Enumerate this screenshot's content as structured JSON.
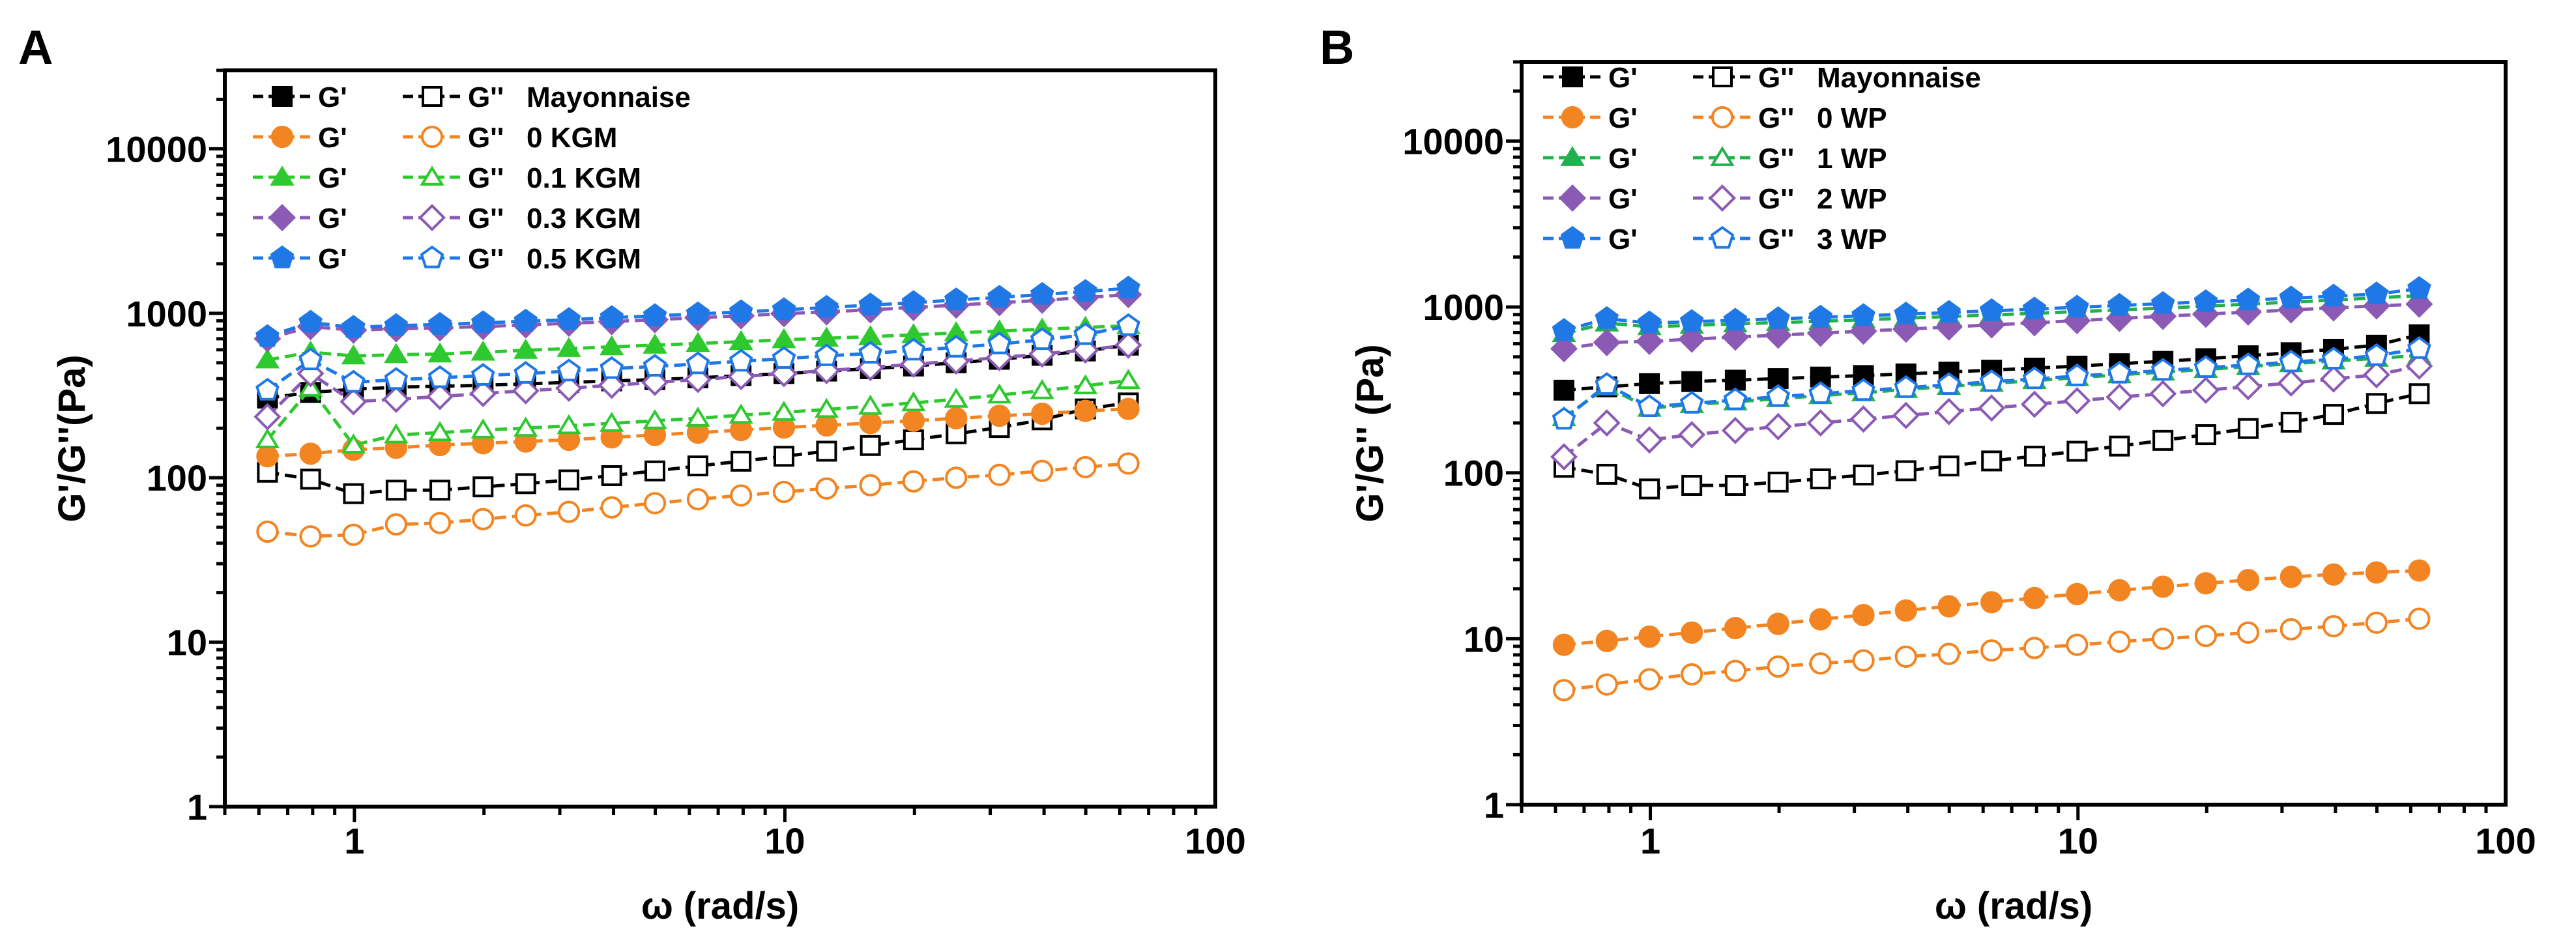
{
  "chart_data": [
    {
      "panel": "A",
      "type": "line",
      "scale": "log-log",
      "xlabel": "ω (rad/s)",
      "ylabel": "G'/G''(Pa)",
      "xlim": [
        0.5,
        100
      ],
      "ylim": [
        1,
        30000
      ],
      "xticks": [
        1,
        10,
        100
      ],
      "xtick_labels": [
        "1",
        "10",
        "100"
      ],
      "yticks": [
        1,
        10,
        100,
        1000,
        10000
      ],
      "ytick_labels": [
        "1",
        "10",
        "100",
        "1000",
        "10000"
      ],
      "legend_position": "top-left",
      "x": [
        0.628,
        0.791,
        0.995,
        1.25,
        1.58,
        1.99,
        2.5,
        3.15,
        3.96,
        4.99,
        6.28,
        7.91,
        9.95,
        12.5,
        15.8,
        19.9,
        25,
        31.5,
        39.6,
        49.9,
        62.8
      ],
      "series": [
        {
          "group": "Mayonnaise",
          "modulus": "G'",
          "legend_gp": "G'",
          "legend_gpp": "G''",
          "name": "Mayonnaise",
          "marker": "square",
          "color": "#000000",
          "filled": true,
          "values": [
            305,
            330,
            345,
            355,
            360,
            365,
            372,
            380,
            388,
            395,
            405,
            418,
            430,
            445,
            460,
            478,
            500,
            525,
            555,
            590,
            640
          ]
        },
        {
          "group": "Mayonnaise",
          "modulus": "G''",
          "marker": "square",
          "color": "#000000",
          "filled": false,
          "values": [
            108,
            98,
            80,
            84,
            84,
            88,
            92,
            97,
            103,
            110,
            118,
            126,
            135,
            145,
            157,
            170,
            185,
            202,
            225,
            262,
            285
          ]
        },
        {
          "group": "0 KGM",
          "modulus": "G'",
          "legend_gp": "G'",
          "legend_gpp": "G''",
          "name": "0 KGM",
          "marker": "circle",
          "color": "#f28522",
          "filled": true,
          "values": [
            135,
            140,
            148,
            152,
            158,
            162,
            166,
            170,
            176,
            182,
            188,
            195,
            202,
            208,
            215,
            222,
            230,
            238,
            245,
            255,
            262
          ]
        },
        {
          "group": "0 KGM",
          "modulus": "G''",
          "marker": "circle",
          "color": "#f28522",
          "filled": false,
          "values": [
            47,
            44,
            45,
            52,
            53,
            56,
            59,
            62,
            66,
            70,
            74,
            78,
            82,
            86,
            90,
            95,
            100,
            104,
            110,
            116,
            122
          ]
        },
        {
          "group": "0.1 KGM",
          "modulus": "G'",
          "legend_gp": "G'",
          "legend_gpp": "G''",
          "name": "0.1 KGM",
          "marker": "triangle",
          "color": "#2ec92e",
          "filled": true,
          "values": [
            520,
            580,
            550,
            560,
            565,
            580,
            595,
            610,
            625,
            640,
            655,
            672,
            690,
            705,
            720,
            740,
            760,
            780,
            800,
            820,
            840
          ]
        },
        {
          "group": "0.1 KGM",
          "modulus": "G''",
          "marker": "triangle",
          "color": "#2ec92e",
          "filled": false,
          "values": [
            170,
            350,
            158,
            182,
            188,
            195,
            200,
            207,
            214,
            222,
            230,
            240,
            250,
            260,
            272,
            285,
            300,
            318,
            338,
            362,
            390
          ]
        },
        {
          "group": "0.3 KGM",
          "modulus": "G'",
          "legend_gp": "G'",
          "legend_gpp": "G''",
          "name": "0.3 KGM",
          "marker": "diamond",
          "color": "#8a5ab4",
          "filled": true,
          "values": [
            700,
            830,
            790,
            805,
            815,
            830,
            850,
            870,
            890,
            915,
            940,
            965,
            995,
            1020,
            1050,
            1085,
            1120,
            1160,
            1200,
            1245,
            1300
          ]
        },
        {
          "group": "0.3 KGM",
          "modulus": "G''",
          "marker": "diamond",
          "color": "#8a5ab4",
          "filled": false,
          "values": [
            235,
            430,
            290,
            300,
            312,
            325,
            338,
            350,
            365,
            380,
            396,
            412,
            430,
            448,
            468,
            490,
            512,
            538,
            565,
            598,
            640
          ]
        },
        {
          "group": "0.5 KGM",
          "modulus": "G'",
          "legend_gp": "G'",
          "legend_gpp": "G''",
          "name": "0.5 KGM",
          "marker": "pentagon",
          "color": "#1f78e6",
          "filled": true,
          "values": [
            720,
            880,
            820,
            840,
            855,
            875,
            895,
            915,
            940,
            965,
            990,
            1020,
            1050,
            1085,
            1120,
            1160,
            1205,
            1250,
            1300,
            1355,
            1420
          ]
        },
        {
          "group": "0.5 KGM",
          "modulus": "G''",
          "marker": "pentagon",
          "color": "#1f78e6",
          "filled": false,
          "values": [
            340,
            520,
            380,
            395,
            405,
            418,
            430,
            445,
            460,
            475,
            492,
            510,
            530,
            550,
            570,
            595,
            620,
            650,
            690,
            740,
            840
          ]
        }
      ]
    },
    {
      "panel": "B",
      "type": "line",
      "scale": "log-log",
      "xlabel": "ω (rad/s)",
      "ylabel": "G'/G'' (Pa)",
      "xlim": [
        0.5,
        100
      ],
      "ylim": [
        1,
        30000
      ],
      "xticks": [
        1,
        10,
        100
      ],
      "xtick_labels": [
        "1",
        "10",
        "100"
      ],
      "yticks": [
        1,
        10,
        100,
        1000,
        10000
      ],
      "ytick_labels": [
        "1",
        "10",
        "100",
        "1000",
        "10000"
      ],
      "legend_position": "top-left",
      "x": [
        0.628,
        0.791,
        0.995,
        1.25,
        1.58,
        1.99,
        2.5,
        3.15,
        3.96,
        4.99,
        6.28,
        7.91,
        9.95,
        12.5,
        15.8,
        19.9,
        25,
        31.5,
        39.6,
        49.9,
        62.8
      ],
      "series": [
        {
          "group": "Mayonnaise",
          "modulus": "G'",
          "legend_gp": "G'",
          "legend_gpp": "G''",
          "name": "Mayonnaise",
          "marker": "square",
          "color": "#000000",
          "filled": true,
          "values": [
            315,
            330,
            345,
            355,
            362,
            370,
            378,
            386,
            395,
            405,
            416,
            428,
            440,
            455,
            470,
            488,
            508,
            530,
            556,
            588,
            680
          ]
        },
        {
          "group": "Mayonnaise",
          "modulus": "G''",
          "marker": "square",
          "color": "#000000",
          "filled": false,
          "values": [
            108,
            98,
            80,
            84,
            84,
            88,
            92,
            97,
            103,
            110,
            118,
            126,
            135,
            145,
            157,
            170,
            185,
            202,
            225,
            262,
            300
          ]
        },
        {
          "group": "0 WP",
          "modulus": "G'",
          "legend_gp": "G'",
          "legend_gpp": "G''",
          "name": "0 WP",
          "marker": "circle",
          "color": "#f28522",
          "filled": true,
          "values": [
            9.2,
            9.7,
            10.3,
            10.9,
            11.6,
            12.3,
            13.1,
            13.9,
            14.8,
            15.7,
            16.6,
            17.6,
            18.6,
            19.6,
            20.6,
            21.6,
            22.6,
            23.6,
            24.4,
            25.1,
            25.8
          ]
        },
        {
          "group": "0 WP",
          "modulus": "G''",
          "marker": "circle",
          "color": "#f28522",
          "filled": false,
          "values": [
            4.9,
            5.3,
            5.7,
            6.1,
            6.4,
            6.8,
            7.1,
            7.4,
            7.8,
            8.1,
            8.5,
            8.8,
            9.2,
            9.6,
            10.0,
            10.4,
            10.9,
            11.4,
            11.9,
            12.5,
            13.2
          ]
        },
        {
          "group": "1 WP",
          "modulus": "G'",
          "legend_gp": "G'",
          "legend_gpp": "G''",
          "name": "1 WP",
          "marker": "triangle",
          "color": "#22b14c",
          "filled": true,
          "values": [
            690,
            800,
            760,
            775,
            790,
            805,
            820,
            838,
            855,
            875,
            895,
            915,
            937,
            960,
            985,
            1010,
            1040,
            1070,
            1100,
            1135,
            1170
          ]
        },
        {
          "group": "1 WP",
          "modulus": "G''",
          "marker": "triangle",
          "color": "#22b14c",
          "filled": false,
          "values": [
            215,
            330,
            245,
            258,
            268,
            280,
            292,
            304,
            318,
            332,
            346,
            360,
            375,
            390,
            405,
            420,
            437,
            455,
            472,
            490,
            510
          ]
        },
        {
          "group": "2 WP",
          "modulus": "G'",
          "legend_gp": "G'",
          "legend_gpp": "G''",
          "name": "2 WP",
          "marker": "diamond",
          "color": "#8a5ab4",
          "filled": true,
          "values": [
            560,
            610,
            620,
            640,
            658,
            676,
            695,
            715,
            735,
            757,
            780,
            803,
            827,
            852,
            878,
            905,
            932,
            960,
            988,
            1015,
            1040
          ]
        },
        {
          "group": "2 WP",
          "modulus": "G''",
          "marker": "diamond",
          "color": "#8a5ab4",
          "filled": false,
          "values": [
            125,
            200,
            158,
            170,
            180,
            190,
            200,
            211,
            222,
            234,
            246,
            259,
            272,
            286,
            300,
            315,
            331,
            348,
            368,
            390,
            440
          ]
        },
        {
          "group": "3 WP",
          "modulus": "G'",
          "legend_gp": "G'",
          "legend_gpp": "G''",
          "name": "3 WP",
          "marker": "pentagon",
          "color": "#1f78e6",
          "filled": true,
          "values": [
            720,
            850,
            800,
            815,
            830,
            848,
            866,
            885,
            905,
            925,
            947,
            970,
            995,
            1020,
            1046,
            1073,
            1100,
            1130,
            1160,
            1195,
            1290
          ]
        },
        {
          "group": "3 WP",
          "modulus": "G''",
          "marker": "pentagon",
          "color": "#1f78e6",
          "filled": false,
          "values": [
            210,
            340,
            250,
            262,
            275,
            288,
            300,
            313,
            326,
            340,
            354,
            368,
            383,
            398,
            414,
            430,
            447,
            465,
            484,
            508,
            560
          ]
        }
      ]
    }
  ]
}
